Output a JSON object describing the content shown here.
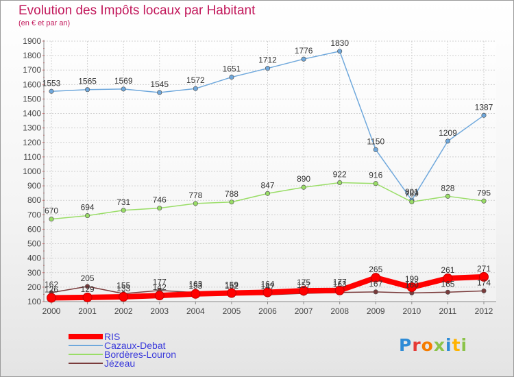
{
  "chart_data": {
    "type": "line",
    "title": "Evolution des Impôts locaux par Habitant",
    "subtitle": "(en € et par an)",
    "x": [
      "2000",
      "2001",
      "2002",
      "2003",
      "2004",
      "2005",
      "2006",
      "2007",
      "2008",
      "2009",
      "2010",
      "2011",
      "2012"
    ],
    "ylim": [
      100,
      1900
    ],
    "yticks": [
      100,
      200,
      300,
      400,
      500,
      600,
      700,
      800,
      900,
      1000,
      1100,
      1200,
      1300,
      1400,
      1500,
      1600,
      1700,
      1800,
      1900
    ],
    "grid": true,
    "legend_position": "bottom-left",
    "series": [
      {
        "name": "RIS",
        "color": "#ff0000",
        "values": [
          126,
          129,
          133,
          142,
          153,
          159,
          164,
          175,
          177,
          265,
          199,
          261,
          271
        ],
        "labels": [
          "126",
          "129",
          "133",
          "142",
          "153",
          "159",
          "164",
          "175",
          "177",
          "265",
          "199",
          "261",
          "271"
        ]
      },
      {
        "name": "Cazaux-Debat",
        "color": "#6fa8dc",
        "values": [
          1553,
          1565,
          1569,
          1545,
          1572,
          1651,
          1712,
          1776,
          1830,
          1150,
          801,
          1209,
          1387
        ],
        "labels": [
          "1553",
          "1565",
          "1569",
          "1545",
          "1572",
          "1651",
          "1712",
          "1776",
          "1830",
          "1150",
          "801",
          "1209",
          "1387"
        ]
      },
      {
        "name": "Bordères-Louron",
        "color": "#99dd66",
        "values": [
          670,
          694,
          731,
          746,
          778,
          788,
          847,
          890,
          922,
          916,
          789,
          828,
          795
        ],
        "labels": [
          "670",
          "694",
          "731",
          "746",
          "778",
          "788",
          "847",
          "890",
          "922",
          "916",
          "789",
          "828",
          "795"
        ]
      },
      {
        "name": "Jézeau",
        "color": "#7a3b3b",
        "values": [
          162,
          205,
          155,
          177,
          163,
          152,
          147,
          157,
          163,
          167,
          160,
          165,
          174
        ],
        "labels": [
          "162",
          "205",
          "155",
          "177",
          "163",
          "152",
          "147",
          "157",
          "163",
          "167",
          "160",
          "165",
          "174"
        ]
      }
    ]
  },
  "logo": {
    "letters": [
      "P",
      "r",
      "o",
      "x",
      "i",
      "t",
      "i"
    ]
  }
}
